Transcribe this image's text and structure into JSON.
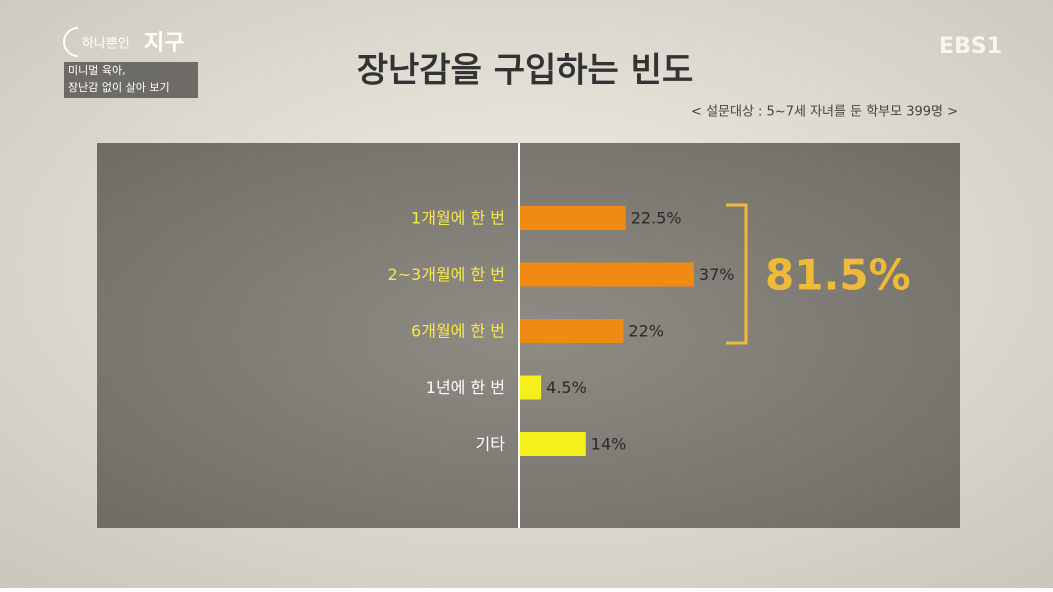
{
  "overlay": {
    "logo_small": "하나뿐인",
    "logo_big": "지구",
    "caption_lines": [
      "미니멀 육아,",
      "장난감 없이 살아 보기"
    ],
    "channel": "EBS1"
  },
  "chart_data": {
    "type": "bar",
    "orientation": "horizontal",
    "title": "장난감을 구입하는 빈도",
    "subtitle": "< 설문대상 : 5~7세 자녀를 둔 학부모 399명 >",
    "categories": [
      "1개월에 한 번",
      "2~3개월에 한 번",
      "6개월에 한 번",
      "1년에 한 번",
      "기타"
    ],
    "values": [
      22.5,
      37,
      22,
      4.5,
      14
    ],
    "value_labels": [
      "22.5%",
      "37%",
      "22%",
      "4.5%",
      "14%"
    ],
    "colors": [
      "#f08a12",
      "#f08a12",
      "#f08a12",
      "#f5ef1c",
      "#f5ef1c"
    ],
    "category_colors": [
      "#f6e84a",
      "#f6e84a",
      "#f6e84a",
      "#ffffff",
      "#ffffff"
    ],
    "annotation": "81.5%"
  }
}
